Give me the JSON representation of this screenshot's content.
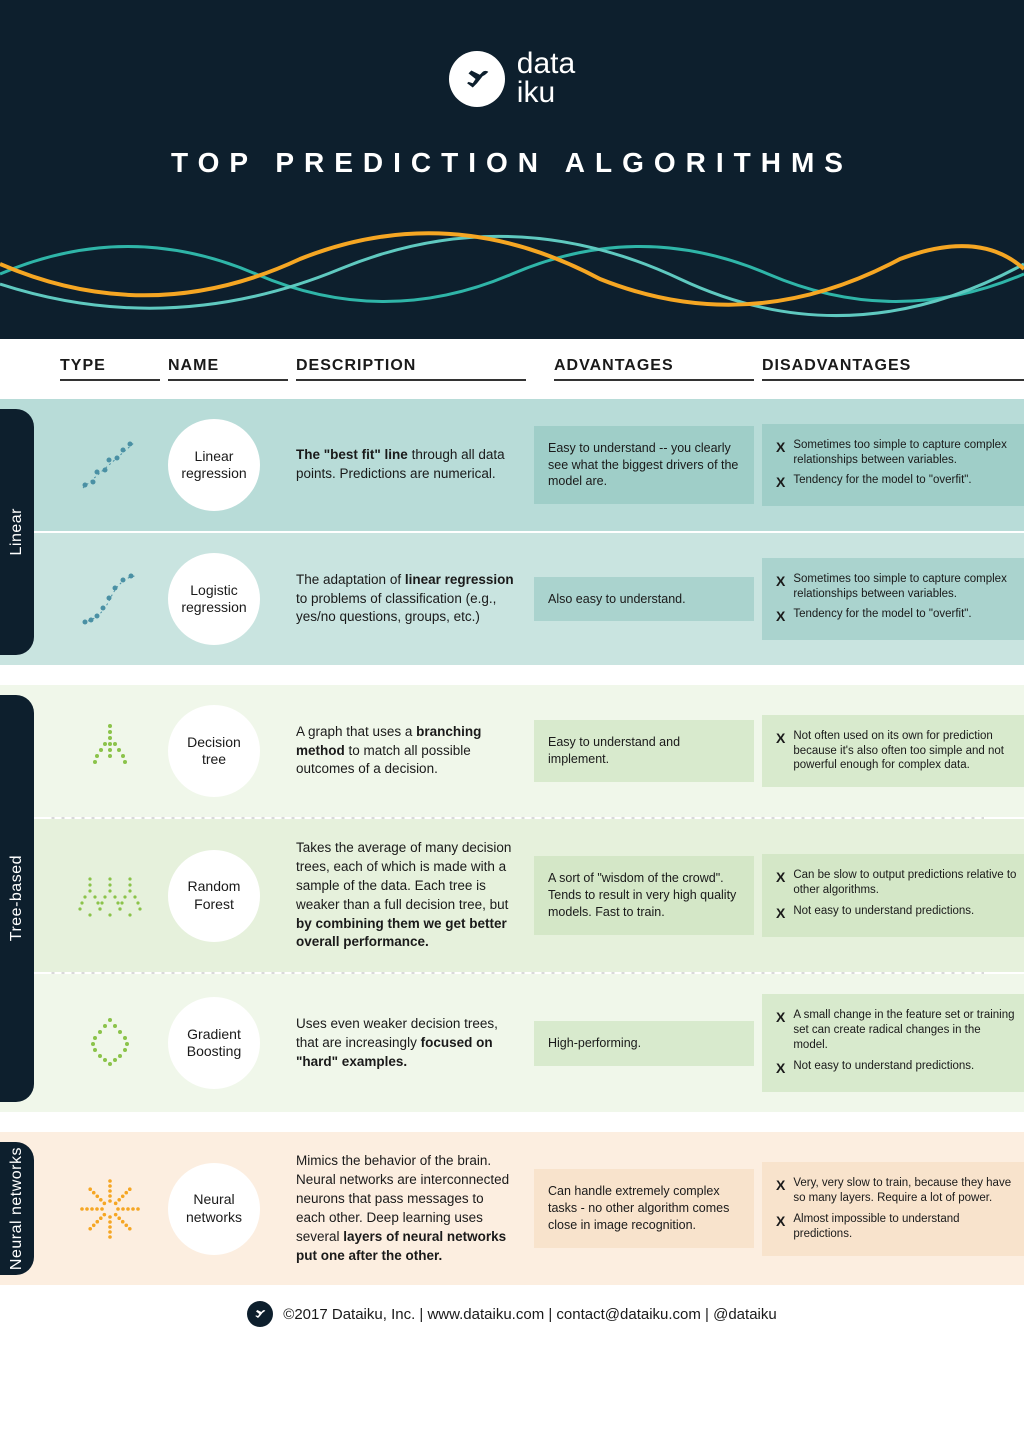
{
  "brand": {
    "name_line1": "data",
    "name_line2": "iku"
  },
  "title": "TOP PREDICTION ALGORITHMS",
  "colors": {
    "header_bg": "#0d1f2d",
    "wave_teal": "#2fb5a8",
    "wave_cyan": "#5fc9c0",
    "wave_orange": "#f5a623",
    "linear_bg1": "#b8dcd8",
    "linear_bg2": "#c9e4e0",
    "tree_bg1": "#f0f7ea",
    "tree_bg2": "#e6f1dc",
    "nn_bg": "#fceee0"
  },
  "columns": {
    "type": "TYPE",
    "name": "NAME",
    "description": "DESCRIPTION",
    "advantages": "ADVANTAGES",
    "disadvantages": "DISADVANTAGES"
  },
  "sections": [
    {
      "label": "Linear",
      "rows": [
        {
          "name": "Linear regression",
          "desc_html": "<b>The \"best fit\" line</b> through all data points. Predictions are numerical.",
          "adv": "Easy to understand -- you clearly see what the biggest drivers of the model are.",
          "dis": [
            "Sometimes too simple to capture complex relationships between variables.",
            "Tendency for the model to \"overfit\"."
          ]
        },
        {
          "name": "Logistic regression",
          "desc_html": "The adaptation of <b>linear regression</b> to problems of classification (e.g., yes/no questions, groups, etc.)",
          "adv": "Also easy to understand.",
          "dis": [
            "Sometimes too simple to capture complex relationships between variables.",
            "Tendency for the model to \"overfit\"."
          ]
        }
      ]
    },
    {
      "label": "Tree-based",
      "rows": [
        {
          "name": "Decision tree",
          "desc_html": "A graph that uses a <b>branching method</b> to match all possible outcomes of a decision.",
          "adv": "Easy to understand and implement.",
          "dis": [
            "Not often used on its own for prediction because it's also often too simple and not powerful enough for complex data."
          ]
        },
        {
          "name": "Random Forest",
          "desc_html": "Takes the average of many decision trees, each of which is made with a sample of the data. Each tree is weaker than a full decision tree, but <b>by combining them we get better overall performance.</b>",
          "adv": "A sort of \"wisdom of the crowd\". Tends to result in very high quality models. Fast to train.",
          "dis": [
            "Can be slow to output predictions relative to other algorithms.",
            "Not easy to understand predictions."
          ]
        },
        {
          "name": "Gradient Boosting",
          "desc_html": "Uses even weaker decision trees, that are increasingly <b>focused on \"hard\" examples.</b>",
          "adv": "High-performing.",
          "dis": [
            "A small change in the feature set or training set can create radical changes in the model.",
            "Not easy to understand predictions."
          ]
        }
      ]
    },
    {
      "label": "Neural networks",
      "rows": [
        {
          "name": "Neural networks",
          "desc_html": "Mimics the behavior of the brain. Neural networks are interconnected neurons that pass messages to each other. Deep learning uses several <b>layers of neural networks put one after the other.</b>",
          "adv": "Can handle extremely complex tasks - no other algorithm comes close in image recognition.",
          "dis": [
            "Very, very slow to train, because they have so many layers. Require a lot of power.",
            "Almost impossible to understand predictions."
          ]
        }
      ]
    }
  ],
  "footer": "©2017 Dataiku, Inc. | www.dataiku.com | contact@dataiku.com | @dataiku",
  "icons": {
    "linear_regression": {
      "type": "scatter-line",
      "color": "#4a90a4"
    },
    "logistic_regression": {
      "type": "scatter-curve",
      "color": "#4a90a4"
    },
    "decision_tree": {
      "type": "tree-dots",
      "color": "#8bc34a"
    },
    "random_forest": {
      "type": "forest-dots",
      "color": "#8bc34a"
    },
    "gradient_boosting": {
      "type": "tree-branch-dots",
      "color": "#8bc34a"
    },
    "neural_networks": {
      "type": "star-dots",
      "color": "#f5a623"
    }
  }
}
